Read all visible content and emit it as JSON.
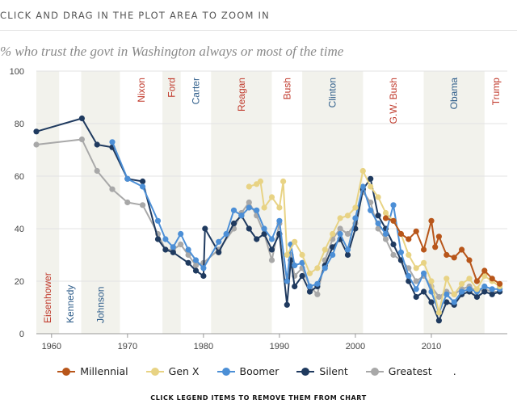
{
  "header": {
    "instruction": "CLICK AND DRAG IN THE PLOT AREA TO ZOOM IN",
    "subtitle": "% who trust the govt in Washington always or most of the time"
  },
  "footer": {
    "note": "CLICK LEGEND ITEMS TO REMOVE THEM FROM CHART"
  },
  "colors": {
    "republican": "#c0392b",
    "democrat": "#2e5d8a",
    "band": "#f2f2ec"
  },
  "chart_data": {
    "type": "line",
    "xlim": [
      1958,
      2020
    ],
    "ylim": [
      0,
      100
    ],
    "x_ticks": [
      1960,
      1970,
      1980,
      1990,
      2000,
      2010
    ],
    "y_ticks": [
      0,
      20,
      40,
      60,
      80,
      100
    ],
    "grid": true,
    "legend": "bottom",
    "presidents": [
      {
        "name": "Eisenhower",
        "party": "R",
        "start": 1958.0,
        "end": 1961.0
      },
      {
        "name": "Kennedy",
        "party": "D",
        "start": 1961.0,
        "end": 1963.9
      },
      {
        "name": "Johnson",
        "party": "D",
        "start": 1963.9,
        "end": 1969.0
      },
      {
        "name": "Nixon",
        "party": "R",
        "start": 1969.0,
        "end": 1974.6
      },
      {
        "name": "Ford",
        "party": "R",
        "start": 1974.6,
        "end": 1977.0
      },
      {
        "name": "Carter",
        "party": "D",
        "start": 1977.0,
        "end": 1981.0
      },
      {
        "name": "Reagan",
        "party": "R",
        "start": 1981.0,
        "end": 1989.0
      },
      {
        "name": "Bush",
        "party": "R",
        "start": 1989.0,
        "end": 1993.0
      },
      {
        "name": "Clinton",
        "party": "D",
        "start": 1993.0,
        "end": 2001.0
      },
      {
        "name": "G.W. Bush",
        "party": "R",
        "start": 2001.0,
        "end": 2009.0
      },
      {
        "name": "Obama",
        "party": "D",
        "start": 2009.0,
        "end": 2017.0
      },
      {
        "name": "Trump",
        "party": "R",
        "start": 2017.0,
        "end": 2020.0
      }
    ],
    "series": [
      {
        "name": "Greatest",
        "color": "#a8a8a8",
        "points": [
          [
            1958,
            72
          ],
          [
            1964,
            74
          ],
          [
            1966,
            62
          ],
          [
            1968,
            55
          ],
          [
            1970,
            50
          ],
          [
            1972,
            49
          ],
          [
            1974,
            38
          ],
          [
            1975,
            32
          ],
          [
            1976,
            32
          ],
          [
            1977,
            34
          ],
          [
            1978,
            30
          ],
          [
            1979,
            26
          ],
          [
            1980,
            27
          ],
          [
            1982,
            32
          ],
          [
            1984,
            40
          ],
          [
            1985,
            46
          ],
          [
            1986,
            50
          ],
          [
            1987,
            45
          ],
          [
            1988,
            38
          ],
          [
            1989,
            28
          ],
          [
            1990,
            42
          ],
          [
            1991,
            20
          ],
          [
            1991.5,
            30
          ],
          [
            1992,
            22
          ],
          [
            1993,
            25
          ],
          [
            1994,
            18
          ],
          [
            1995,
            15
          ],
          [
            1996,
            28
          ],
          [
            1997,
            36
          ],
          [
            1998,
            40
          ],
          [
            1999,
            38
          ],
          [
            2000,
            42
          ],
          [
            2001,
            54
          ],
          [
            2002,
            50
          ],
          [
            2003,
            40
          ],
          [
            2004,
            36
          ],
          [
            2005,
            30
          ],
          [
            2006,
            28
          ],
          [
            2007,
            25
          ],
          [
            2008,
            20
          ],
          [
            2009,
            22
          ],
          [
            2010,
            18
          ],
          [
            2011,
            14
          ],
          [
            2012,
            16
          ],
          [
            2013,
            15
          ],
          [
            2014,
            17
          ],
          [
            2015,
            18
          ],
          [
            2016,
            16
          ],
          [
            2017,
            17
          ],
          [
            2018,
            16
          ],
          [
            2019,
            16
          ]
        ]
      },
      {
        "name": "Silent",
        "color": "#1f3a5f",
        "points": [
          [
            1958,
            77
          ],
          [
            1964,
            82
          ],
          [
            1966,
            72
          ],
          [
            1968,
            71
          ],
          [
            1970,
            59
          ],
          [
            1972,
            58
          ],
          [
            1974,
            36
          ],
          [
            1975,
            32
          ],
          [
            1976,
            31
          ],
          [
            1978,
            27
          ],
          [
            1979,
            24
          ],
          [
            1980,
            22
          ],
          [
            1980.2,
            40
          ],
          [
            1982,
            31
          ],
          [
            1984,
            42
          ],
          [
            1985,
            45
          ],
          [
            1986,
            40
          ],
          [
            1987,
            36
          ],
          [
            1988,
            38
          ],
          [
            1989,
            32
          ],
          [
            1990,
            38
          ],
          [
            1991,
            11
          ],
          [
            1991.5,
            28
          ],
          [
            1992,
            18
          ],
          [
            1993,
            22
          ],
          [
            1994,
            16
          ],
          [
            1995,
            18
          ],
          [
            1996,
            26
          ],
          [
            1997,
            33
          ],
          [
            1998,
            36
          ],
          [
            1999,
            30
          ],
          [
            2000,
            40
          ],
          [
            2001,
            55
          ],
          [
            2002,
            59
          ],
          [
            2003,
            45
          ],
          [
            2004,
            40
          ],
          [
            2005,
            34
          ],
          [
            2006,
            28
          ],
          [
            2007,
            20
          ],
          [
            2008,
            14
          ],
          [
            2009,
            16
          ],
          [
            2010,
            12
          ],
          [
            2011,
            5
          ],
          [
            2012,
            12
          ],
          [
            2013,
            11
          ],
          [
            2014,
            15
          ],
          [
            2015,
            16
          ],
          [
            2016,
            14
          ],
          [
            2017,
            16
          ],
          [
            2018,
            15
          ],
          [
            2019,
            16
          ]
        ]
      },
      {
        "name": "Boomer",
        "color": "#4c8fd6",
        "points": [
          [
            1968,
            73
          ],
          [
            1970,
            59
          ],
          [
            1972,
            56
          ],
          [
            1974,
            43
          ],
          [
            1975,
            36
          ],
          [
            1976,
            33
          ],
          [
            1977,
            38
          ],
          [
            1978,
            32
          ],
          [
            1979,
            28
          ],
          [
            1980,
            25
          ],
          [
            1982,
            35
          ],
          [
            1983,
            38
          ],
          [
            1984,
            47
          ],
          [
            1985,
            45
          ],
          [
            1986,
            48
          ],
          [
            1987,
            47
          ],
          [
            1988,
            40
          ],
          [
            1989,
            36
          ],
          [
            1990,
            43
          ],
          [
            1991,
            20
          ],
          [
            1991.5,
            34
          ],
          [
            1992,
            26
          ],
          [
            1993,
            27
          ],
          [
            1994,
            18
          ],
          [
            1995,
            19
          ],
          [
            1996,
            25
          ],
          [
            1997,
            30
          ],
          [
            1998,
            38
          ],
          [
            1999,
            32
          ],
          [
            2000,
            44
          ],
          [
            2001,
            56
          ],
          [
            2002,
            47
          ],
          [
            2003,
            42
          ],
          [
            2004,
            38
          ],
          [
            2005,
            49
          ],
          [
            2006,
            31
          ],
          [
            2007,
            22
          ],
          [
            2008,
            17
          ],
          [
            2009,
            23
          ],
          [
            2010,
            16
          ],
          [
            2011,
            8
          ],
          [
            2012,
            15
          ],
          [
            2013,
            12
          ],
          [
            2014,
            16
          ],
          [
            2015,
            17
          ],
          [
            2016,
            16
          ],
          [
            2017,
            18
          ],
          [
            2018,
            17
          ],
          [
            2019,
            17
          ]
        ]
      },
      {
        "name": "Gen X",
        "color": "#e8d384",
        "points": [
          [
            1986,
            56
          ],
          [
            1987,
            57
          ],
          [
            1987.5,
            58
          ],
          [
            1988,
            48
          ],
          [
            1989,
            52
          ],
          [
            1990,
            48
          ],
          [
            1990.5,
            58
          ],
          [
            1991,
            30
          ],
          [
            1992,
            35
          ],
          [
            1993,
            30
          ],
          [
            1994,
            23
          ],
          [
            1995,
            25
          ],
          [
            1996,
            32
          ],
          [
            1997,
            38
          ],
          [
            1998,
            44
          ],
          [
            1999,
            45
          ],
          [
            2000,
            48
          ],
          [
            2001,
            62
          ],
          [
            2002,
            56
          ],
          [
            2003,
            52
          ],
          [
            2004,
            46
          ],
          [
            2005,
            43
          ],
          [
            2006,
            38
          ],
          [
            2007,
            30
          ],
          [
            2008,
            25
          ],
          [
            2009,
            27
          ],
          [
            2010,
            20
          ],
          [
            2011,
            8
          ],
          [
            2012,
            21
          ],
          [
            2013,
            15
          ],
          [
            2014,
            19
          ],
          [
            2015,
            21
          ],
          [
            2016,
            17
          ],
          [
            2017,
            22
          ],
          [
            2018,
            20
          ],
          [
            2019,
            18
          ]
        ]
      },
      {
        "name": "Millennial",
        "color": "#b8561a",
        "points": [
          [
            2004,
            44
          ],
          [
            2005,
            43
          ],
          [
            2006,
            38
          ],
          [
            2007,
            36
          ],
          [
            2008,
            39
          ],
          [
            2009,
            32
          ],
          [
            2010,
            43
          ],
          [
            2010.5,
            33
          ],
          [
            2011,
            37
          ],
          [
            2012,
            30
          ],
          [
            2013,
            29
          ],
          [
            2014,
            32
          ],
          [
            2015,
            28
          ],
          [
            2016,
            20
          ],
          [
            2017,
            24
          ],
          [
            2018,
            21
          ],
          [
            2019,
            19
          ]
        ]
      }
    ],
    "legend_order": [
      "Millennial",
      "Gen X",
      "Boomer",
      "Silent",
      "Greatest"
    ]
  }
}
